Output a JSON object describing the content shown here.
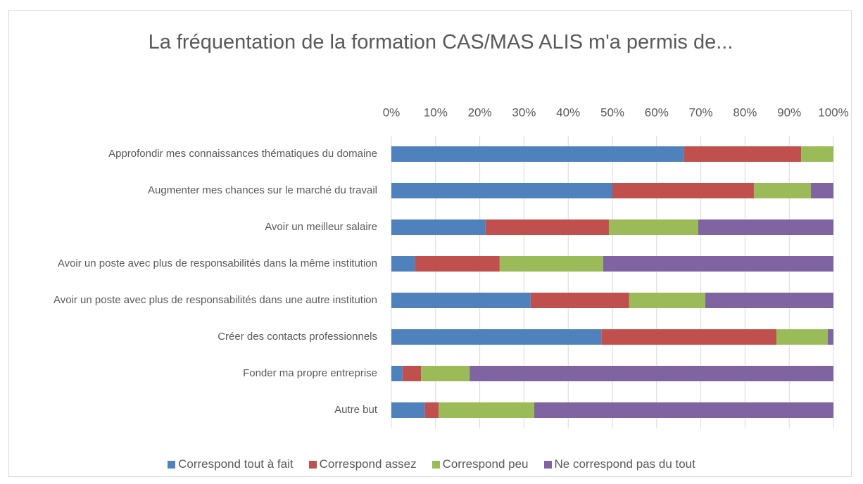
{
  "chart_data": {
    "type": "bar",
    "orientation": "horizontal",
    "stacked": true,
    "title": "La fréquentation de la formation CAS/MAS ALIS m'a permis de...",
    "categories": [
      "Approfondir mes connaissances thématiques du domaine",
      "Augmenter mes chances sur le marché du travail",
      "Avoir un meilleur salaire",
      "Avoir un poste avec plus de responsabilités dans la même institution",
      "Avoir un poste avec plus de responsabilités dans une autre institution",
      "Créer des contacts professionnels",
      "Fonder ma propre entreprise",
      "Autre but"
    ],
    "series": [
      {
        "name": "Correspond tout à fait",
        "color": "#4f81bd",
        "values": [
          66.2,
          50.0,
          21.3,
          5.4,
          31.5,
          47.5,
          2.5,
          7.6
        ]
      },
      {
        "name": "Correspond assez",
        "color": "#c0504d",
        "values": [
          26.5,
          32.0,
          27.9,
          19.1,
          22.3,
          39.6,
          4.2,
          3.1
        ]
      },
      {
        "name": "Correspond peu",
        "color": "#9bbb59",
        "values": [
          7.3,
          12.9,
          20.2,
          23.4,
          17.2,
          11.6,
          11.0,
          21.6
        ]
      },
      {
        "name": "Ne correspond pas du tout",
        "color": "#8064a2",
        "values": [
          0,
          5.1,
          30.6,
          52.1,
          29.0,
          1.3,
          82.3,
          67.7
        ]
      }
    ],
    "xlim": [
      0,
      100
    ],
    "xticks": [
      {
        "value": 0,
        "label": "0%"
      },
      {
        "value": 10,
        "label": "10%"
      },
      {
        "value": 20,
        "label": "20%"
      },
      {
        "value": 30,
        "label": "30%"
      },
      {
        "value": 40,
        "label": "40%"
      },
      {
        "value": 50,
        "label": "50%"
      },
      {
        "value": 60,
        "label": "60%"
      },
      {
        "value": 70,
        "label": "70%"
      },
      {
        "value": 80,
        "label": "80%"
      },
      {
        "value": 90,
        "label": "90%"
      },
      {
        "value": 100,
        "label": "100%"
      }
    ],
    "grid": true,
    "legend": "bottom"
  }
}
